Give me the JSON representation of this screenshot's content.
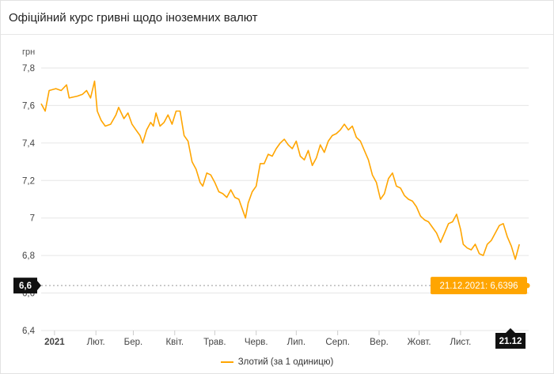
{
  "header": {
    "title": "Офіційний курс гривні щодо іноземних валют"
  },
  "colors": {
    "series": "#FFA500",
    "grid": "#e6e6e6",
    "tooltip_bg": "#FFA500",
    "dark_label": "#111111"
  },
  "chart_data": {
    "type": "line",
    "ylabel": "грн",
    "ylim": [
      6.4,
      7.8
    ],
    "y_ticks": [
      {
        "value": 6.4,
        "label": "6,4"
      },
      {
        "value": 6.6,
        "label": "6,6"
      },
      {
        "value": 6.8,
        "label": "6,8"
      },
      {
        "value": 7.0,
        "label": "7"
      },
      {
        "value": 7.2,
        "label": "7,2"
      },
      {
        "value": 7.4,
        "label": "7,4"
      },
      {
        "value": 7.6,
        "label": "7,6"
      },
      {
        "value": 7.8,
        "label": "7,8"
      }
    ],
    "x_ticks": [
      {
        "date": "2021-01-01",
        "label": "2021",
        "bold": true
      },
      {
        "date": "2021-02-01",
        "label": "Лют."
      },
      {
        "date": "2021-03-01",
        "label": "Бер."
      },
      {
        "date": "2021-04-01",
        "label": "Квіт."
      },
      {
        "date": "2021-05-01",
        "label": "Трав."
      },
      {
        "date": "2021-06-01",
        "label": "Черв."
      },
      {
        "date": "2021-07-01",
        "label": "Лип."
      },
      {
        "date": "2021-08-01",
        "label": "Серп."
      },
      {
        "date": "2021-09-01",
        "label": "Вер."
      },
      {
        "date": "2021-10-01",
        "label": "Жовт."
      },
      {
        "date": "2021-11-01",
        "label": "Лист."
      }
    ],
    "x_start": "2020-12-22",
    "x_end": "2021-12-22",
    "series": [
      {
        "name": "Злотий (за 1 одиницю)",
        "points": [
          [
            "2020-12-22",
            7.61
          ],
          [
            "2020-12-25",
            7.57
          ],
          [
            "2020-12-28",
            7.68
          ],
          [
            "2021-01-02",
            7.69
          ],
          [
            "2021-01-06",
            7.68
          ],
          [
            "2021-01-10",
            7.71
          ],
          [
            "2021-01-12",
            7.64
          ],
          [
            "2021-01-18",
            7.65
          ],
          [
            "2021-01-22",
            7.66
          ],
          [
            "2021-01-25",
            7.68
          ],
          [
            "2021-01-28",
            7.64
          ],
          [
            "2021-01-31",
            7.73
          ],
          [
            "2021-02-02",
            7.57
          ],
          [
            "2021-02-05",
            7.52
          ],
          [
            "2021-02-08",
            7.49
          ],
          [
            "2021-02-12",
            7.5
          ],
          [
            "2021-02-16",
            7.55
          ],
          [
            "2021-02-18",
            7.59
          ],
          [
            "2021-02-22",
            7.53
          ],
          [
            "2021-02-25",
            7.56
          ],
          [
            "2021-02-28",
            7.5
          ],
          [
            "2021-03-03",
            7.47
          ],
          [
            "2021-03-06",
            7.44
          ],
          [
            "2021-03-08",
            7.4
          ],
          [
            "2021-03-11",
            7.47
          ],
          [
            "2021-03-14",
            7.51
          ],
          [
            "2021-03-16",
            7.49
          ],
          [
            "2021-03-18",
            7.56
          ],
          [
            "2021-03-21",
            7.49
          ],
          [
            "2021-03-24",
            7.51
          ],
          [
            "2021-03-27",
            7.55
          ],
          [
            "2021-03-30",
            7.5
          ],
          [
            "2021-04-02",
            7.57
          ],
          [
            "2021-04-05",
            7.57
          ],
          [
            "2021-04-08",
            7.44
          ],
          [
            "2021-04-11",
            7.41
          ],
          [
            "2021-04-14",
            7.3
          ],
          [
            "2021-04-17",
            7.26
          ],
          [
            "2021-04-20",
            7.19
          ],
          [
            "2021-04-22",
            7.17
          ],
          [
            "2021-04-25",
            7.24
          ],
          [
            "2021-04-28",
            7.23
          ],
          [
            "2021-05-01",
            7.19
          ],
          [
            "2021-05-04",
            7.14
          ],
          [
            "2021-05-07",
            7.13
          ],
          [
            "2021-05-10",
            7.11
          ],
          [
            "2021-05-13",
            7.15
          ],
          [
            "2021-05-16",
            7.11
          ],
          [
            "2021-05-19",
            7.1
          ],
          [
            "2021-05-22",
            7.04
          ],
          [
            "2021-05-24",
            7.0
          ],
          [
            "2021-05-26",
            7.08
          ],
          [
            "2021-05-29",
            7.14
          ],
          [
            "2021-06-01",
            7.17
          ],
          [
            "2021-06-04",
            7.29
          ],
          [
            "2021-06-07",
            7.29
          ],
          [
            "2021-06-10",
            7.34
          ],
          [
            "2021-06-13",
            7.33
          ],
          [
            "2021-06-16",
            7.37
          ],
          [
            "2021-06-19",
            7.4
          ],
          [
            "2021-06-22",
            7.42
          ],
          [
            "2021-06-25",
            7.39
          ],
          [
            "2021-06-28",
            7.37
          ],
          [
            "2021-07-01",
            7.41
          ],
          [
            "2021-07-04",
            7.33
          ],
          [
            "2021-07-07",
            7.31
          ],
          [
            "2021-07-10",
            7.36
          ],
          [
            "2021-07-13",
            7.28
          ],
          [
            "2021-07-16",
            7.32
          ],
          [
            "2021-07-19",
            7.39
          ],
          [
            "2021-07-22",
            7.35
          ],
          [
            "2021-07-25",
            7.41
          ],
          [
            "2021-07-28",
            7.44
          ],
          [
            "2021-07-31",
            7.45
          ],
          [
            "2021-08-03",
            7.47
          ],
          [
            "2021-08-06",
            7.5
          ],
          [
            "2021-08-09",
            7.47
          ],
          [
            "2021-08-12",
            7.49
          ],
          [
            "2021-08-15",
            7.43
          ],
          [
            "2021-08-18",
            7.41
          ],
          [
            "2021-08-21",
            7.36
          ],
          [
            "2021-08-24",
            7.31
          ],
          [
            "2021-08-27",
            7.23
          ],
          [
            "2021-08-30",
            7.19
          ],
          [
            "2021-09-02",
            7.1
          ],
          [
            "2021-09-05",
            7.13
          ],
          [
            "2021-09-08",
            7.21
          ],
          [
            "2021-09-11",
            7.24
          ],
          [
            "2021-09-14",
            7.17
          ],
          [
            "2021-09-17",
            7.16
          ],
          [
            "2021-09-20",
            7.12
          ],
          [
            "2021-09-23",
            7.1
          ],
          [
            "2021-09-26",
            7.09
          ],
          [
            "2021-09-29",
            7.06
          ],
          [
            "2021-10-02",
            7.01
          ],
          [
            "2021-10-05",
            6.99
          ],
          [
            "2021-10-08",
            6.98
          ],
          [
            "2021-10-11",
            6.95
          ],
          [
            "2021-10-14",
            6.92
          ],
          [
            "2021-10-17",
            6.87
          ],
          [
            "2021-10-20",
            6.92
          ],
          [
            "2021-10-23",
            6.97
          ],
          [
            "2021-10-26",
            6.98
          ],
          [
            "2021-10-29",
            7.02
          ],
          [
            "2021-11-01",
            6.94
          ],
          [
            "2021-11-03",
            6.86
          ],
          [
            "2021-11-06",
            6.84
          ],
          [
            "2021-11-09",
            6.83
          ],
          [
            "2021-11-12",
            6.86
          ],
          [
            "2021-11-15",
            6.81
          ],
          [
            "2021-11-18",
            6.8
          ],
          [
            "2021-11-21",
            6.86
          ],
          [
            "2021-11-24",
            6.88
          ],
          [
            "2021-11-27",
            6.92
          ],
          [
            "2021-11-30",
            6.96
          ],
          [
            "2021-12-03",
            6.97
          ],
          [
            "2021-12-06",
            6.9
          ],
          [
            "2021-12-09",
            6.85
          ],
          [
            "2021-12-12",
            6.78
          ],
          [
            "2021-12-15",
            6.86
          ]
        ]
      }
    ],
    "tooltip": {
      "text": "21.12.2021: 6,6396",
      "date": "2021-12-21",
      "value": 6.6396
    },
    "crosshair": {
      "y_label": "6,6",
      "x_label": "21.12"
    }
  },
  "legend": {
    "label": "Злотий (за 1 одиницю)"
  }
}
